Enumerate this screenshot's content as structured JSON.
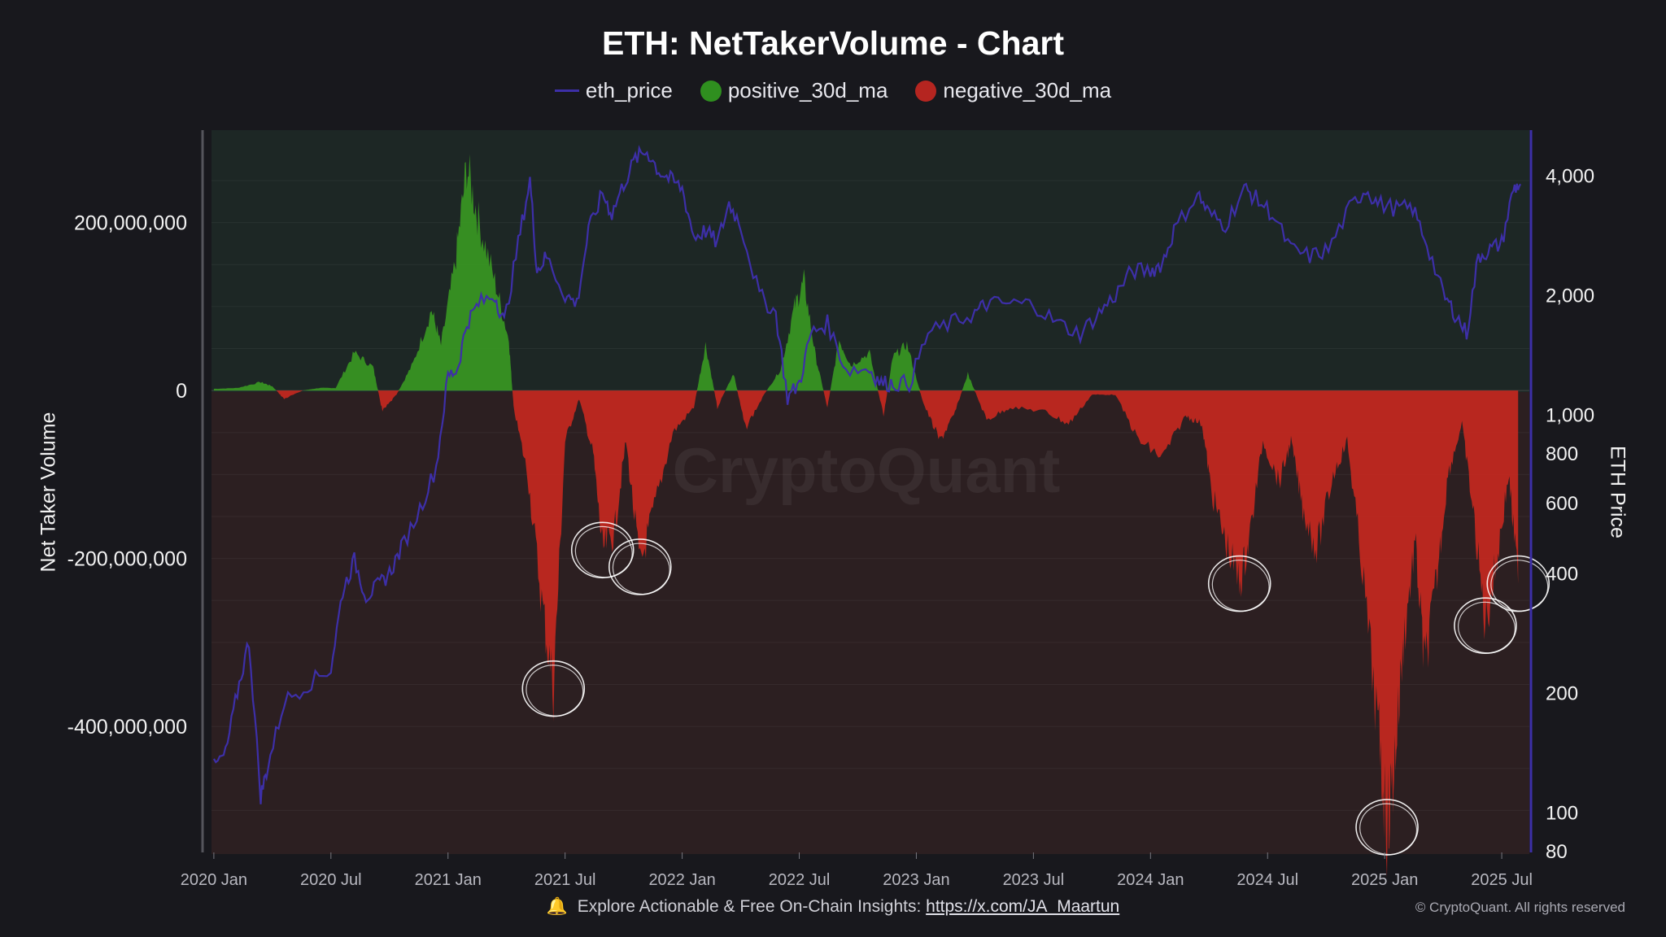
{
  "chart_data": {
    "type": "area",
    "title": "ETH: NetTakerVolume - Chart",
    "legend": [
      {
        "name": "eth_price",
        "marker": "line",
        "color": "#3d2fa8"
      },
      {
        "name": "positive_30d_ma",
        "marker": "dot",
        "color": "#2f8f1f"
      },
      {
        "name": "negative_30d_ma",
        "marker": "dot",
        "color": "#b52520"
      }
    ],
    "ylabel": "Net Taker Volume",
    "y2label": "ETH Price",
    "ylim": [
      -550000000,
      310000000
    ],
    "y2lim": [
      80,
      5000
    ],
    "y2scale": "log",
    "y_ticks": [
      {
        "value": 200000000,
        "label": "200,000,000"
      },
      {
        "value": 0,
        "label": "0"
      },
      {
        "value": -200000000,
        "label": "-200,000,000"
      },
      {
        "value": -400000000,
        "label": "-400,000,000"
      }
    ],
    "y2_ticks": [
      {
        "value": 4000,
        "label": "4,000"
      },
      {
        "value": 2000,
        "label": "2,000"
      },
      {
        "value": 1000,
        "label": "1,000"
      },
      {
        "value": 800,
        "label": "800"
      },
      {
        "value": 600,
        "label": "600"
      },
      {
        "value": 400,
        "label": "400"
      },
      {
        "value": 200,
        "label": "200"
      },
      {
        "value": 100,
        "label": "100"
      },
      {
        "value": 80,
        "label": "80"
      }
    ],
    "x_ticks": [
      {
        "value": 2020.0,
        "label": "2020 Jan"
      },
      {
        "value": 2020.5,
        "label": "2020 Jul"
      },
      {
        "value": 2021.0,
        "label": "2021 Jan"
      },
      {
        "value": 2021.5,
        "label": "2021 Jul"
      },
      {
        "value": 2022.0,
        "label": "2022 Jan"
      },
      {
        "value": 2022.5,
        "label": "2022 Jul"
      },
      {
        "value": 2023.0,
        "label": "2023 Jan"
      },
      {
        "value": 2023.5,
        "label": "2023 Jul"
      },
      {
        "value": 2024.0,
        "label": "2024 Jan"
      },
      {
        "value": 2024.5,
        "label": "2024 Jul"
      },
      {
        "value": 2025.0,
        "label": "2025 Jan"
      },
      {
        "value": 2025.5,
        "label": "2025 Jul"
      }
    ],
    "xlim": [
      2019.99,
      2025.59
    ],
    "net_taker_volume": [
      [
        2020.0,
        2000000
      ],
      [
        2020.1,
        3000000
      ],
      [
        2020.2,
        10000000
      ],
      [
        2020.25,
        5000000
      ],
      [
        2020.3,
        -10000000
      ],
      [
        2020.38,
        0
      ],
      [
        2020.45,
        3000000
      ],
      [
        2020.52,
        3000000
      ],
      [
        2020.6,
        45000000
      ],
      [
        2020.68,
        28000000
      ],
      [
        2020.72,
        -25000000
      ],
      [
        2020.78,
        -5000000
      ],
      [
        2020.85,
        32000000
      ],
      [
        2020.93,
        96000000
      ],
      [
        2020.97,
        54000000
      ],
      [
        2021.03,
        150000000
      ],
      [
        2021.08,
        268000000
      ],
      [
        2021.13,
        203000000
      ],
      [
        2021.2,
        130000000
      ],
      [
        2021.26,
        60000000
      ],
      [
        2021.28,
        -20000000
      ],
      [
        2021.34,
        -100000000
      ],
      [
        2021.4,
        -250000000
      ],
      [
        2021.45,
        -355000000
      ],
      [
        2021.5,
        -60000000
      ],
      [
        2021.56,
        -10000000
      ],
      [
        2021.62,
        -75000000
      ],
      [
        2021.66,
        -190000000
      ],
      [
        2021.71,
        -170000000
      ],
      [
        2021.76,
        -60000000
      ],
      [
        2021.82,
        -210000000
      ],
      [
        2021.88,
        -140000000
      ],
      [
        2021.96,
        -50000000
      ],
      [
        2022.05,
        -20000000
      ],
      [
        2022.1,
        55000000
      ],
      [
        2022.15,
        -20000000
      ],
      [
        2022.22,
        20000000
      ],
      [
        2022.27,
        -45000000
      ],
      [
        2022.35,
        -5000000
      ],
      [
        2022.42,
        25000000
      ],
      [
        2022.48,
        100000000
      ],
      [
        2022.52,
        130000000
      ],
      [
        2022.57,
        40000000
      ],
      [
        2022.62,
        -20000000
      ],
      [
        2022.67,
        60000000
      ],
      [
        2022.72,
        30000000
      ],
      [
        2022.8,
        45000000
      ],
      [
        2022.86,
        -30000000
      ],
      [
        2022.9,
        40000000
      ],
      [
        2022.96,
        55000000
      ],
      [
        2023.03,
        -15000000
      ],
      [
        2023.1,
        -60000000
      ],
      [
        2023.16,
        -30000000
      ],
      [
        2023.22,
        20000000
      ],
      [
        2023.3,
        -35000000
      ],
      [
        2023.4,
        -20000000
      ],
      [
        2023.55,
        -25000000
      ],
      [
        2023.65,
        -40000000
      ],
      [
        2023.75,
        -5000000
      ],
      [
        2023.85,
        -5000000
      ],
      [
        2023.95,
        -60000000
      ],
      [
        2024.05,
        -80000000
      ],
      [
        2024.15,
        -30000000
      ],
      [
        2024.22,
        -40000000
      ],
      [
        2024.26,
        -120000000
      ],
      [
        2024.32,
        -180000000
      ],
      [
        2024.38,
        -230000000
      ],
      [
        2024.42,
        -180000000
      ],
      [
        2024.48,
        -60000000
      ],
      [
        2024.55,
        -110000000
      ],
      [
        2024.6,
        -60000000
      ],
      [
        2024.65,
        -140000000
      ],
      [
        2024.71,
        -190000000
      ],
      [
        2024.78,
        -100000000
      ],
      [
        2024.84,
        -60000000
      ],
      [
        2024.9,
        -200000000
      ],
      [
        2024.97,
        -400000000
      ],
      [
        2025.01,
        -520000000
      ],
      [
        2025.04,
        -450000000
      ],
      [
        2025.08,
        -300000000
      ],
      [
        2025.13,
        -180000000
      ],
      [
        2025.17,
        -330000000
      ],
      [
        2025.22,
        -230000000
      ],
      [
        2025.27,
        -100000000
      ],
      [
        2025.33,
        -40000000
      ],
      [
        2025.38,
        -150000000
      ],
      [
        2025.43,
        -280000000
      ],
      [
        2025.48,
        -200000000
      ],
      [
        2025.53,
        -100000000
      ],
      [
        2025.57,
        -230000000
      ]
    ],
    "eth_price": [
      [
        2020.0,
        130
      ],
      [
        2020.05,
        140
      ],
      [
        2020.1,
        200
      ],
      [
        2020.15,
        270
      ],
      [
        2020.2,
        110
      ],
      [
        2020.23,
        130
      ],
      [
        2020.3,
        190
      ],
      [
        2020.4,
        210
      ],
      [
        2020.5,
        230
      ],
      [
        2020.55,
        360
      ],
      [
        2020.6,
        430
      ],
      [
        2020.65,
        350
      ],
      [
        2020.7,
        370
      ],
      [
        2020.75,
        400
      ],
      [
        2020.8,
        460
      ],
      [
        2020.88,
        580
      ],
      [
        2020.95,
        740
      ],
      [
        2021.0,
        1250
      ],
      [
        2021.04,
        1300
      ],
      [
        2021.08,
        1700
      ],
      [
        2021.13,
        1900
      ],
      [
        2021.2,
        2000
      ],
      [
        2021.24,
        1700
      ],
      [
        2021.3,
        2700
      ],
      [
        2021.35,
        3900
      ],
      [
        2021.38,
        2300
      ],
      [
        2021.42,
        2500
      ],
      [
        2021.5,
        2000
      ],
      [
        2021.55,
        1900
      ],
      [
        2021.6,
        2900
      ],
      [
        2021.66,
        3600
      ],
      [
        2021.7,
        3200
      ],
      [
        2021.75,
        3800
      ],
      [
        2021.8,
        4400
      ],
      [
        2021.85,
        4600
      ],
      [
        2021.9,
        4100
      ],
      [
        2021.95,
        3900
      ],
      [
        2022.0,
        3700
      ],
      [
        2022.05,
        2800
      ],
      [
        2022.1,
        2900
      ],
      [
        2022.15,
        2700
      ],
      [
        2022.2,
        3400
      ],
      [
        2022.25,
        3000
      ],
      [
        2022.33,
        2000
      ],
      [
        2022.4,
        1800
      ],
      [
        2022.45,
        1100
      ],
      [
        2022.5,
        1200
      ],
      [
        2022.55,
        1600
      ],
      [
        2022.62,
        1700
      ],
      [
        2022.7,
        1300
      ],
      [
        2022.8,
        1300
      ],
      [
        2022.85,
        1200
      ],
      [
        2022.9,
        1200
      ],
      [
        2022.97,
        1200
      ],
      [
        2023.05,
        1600
      ],
      [
        2023.15,
        1700
      ],
      [
        2023.25,
        1800
      ],
      [
        2023.3,
        1900
      ],
      [
        2023.4,
        1900
      ],
      [
        2023.5,
        1900
      ],
      [
        2023.6,
        1700
      ],
      [
        2023.7,
        1600
      ],
      [
        2023.78,
        1800
      ],
      [
        2023.85,
        2000
      ],
      [
        2023.92,
        2300
      ],
      [
        2024.0,
        2300
      ],
      [
        2024.05,
        2400
      ],
      [
        2024.1,
        2900
      ],
      [
        2024.2,
        3600
      ],
      [
        2024.25,
        3200
      ],
      [
        2024.32,
        3000
      ],
      [
        2024.4,
        3700
      ],
      [
        2024.45,
        3500
      ],
      [
        2024.52,
        3200
      ],
      [
        2024.6,
        2600
      ],
      [
        2024.68,
        2500
      ],
      [
        2024.76,
        2600
      ],
      [
        2024.85,
        3300
      ],
      [
        2024.92,
        3700
      ],
      [
        2024.97,
        3400
      ],
      [
        2025.05,
        3300
      ],
      [
        2025.12,
        3300
      ],
      [
        2025.18,
        2700
      ],
      [
        2025.25,
        2000
      ],
      [
        2025.3,
        1800
      ],
      [
        2025.35,
        1600
      ],
      [
        2025.4,
        2500
      ],
      [
        2025.45,
        2600
      ],
      [
        2025.5,
        2700
      ],
      [
        2025.55,
        3700
      ],
      [
        2025.58,
        3800
      ]
    ],
    "watermark": "CryptoQuant"
  },
  "footer": {
    "text": "Explore Actionable & Free On-Chain Insights:",
    "link": "https://x.com/JA_Maartun",
    "copyright": "© CryptoQuant. All rights reserved"
  },
  "annotations_circled_at": [
    2021.45,
    2021.66,
    2021.82,
    2024.38,
    2025.01,
    2025.43,
    2025.57
  ]
}
